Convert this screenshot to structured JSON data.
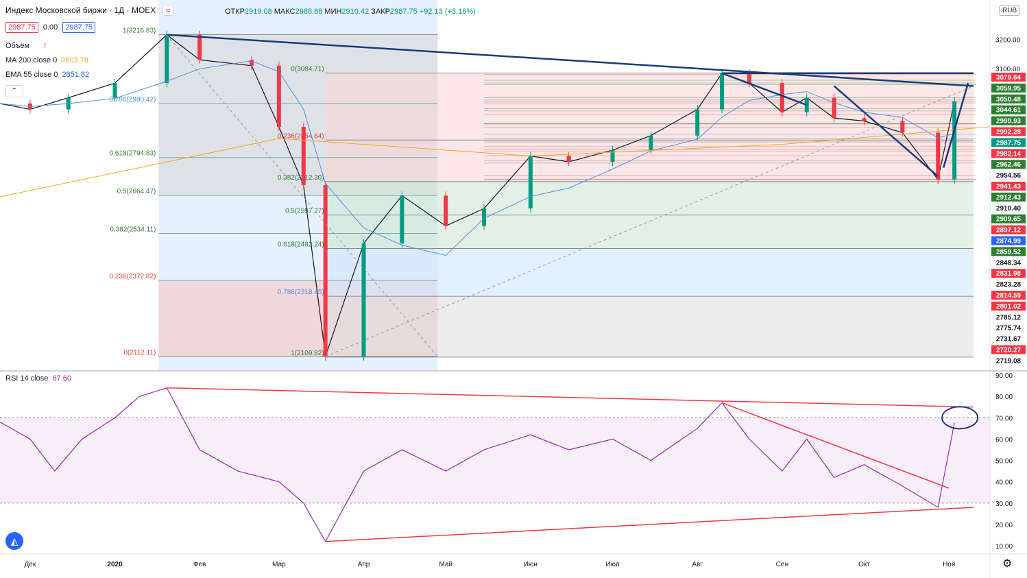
{
  "header": {
    "title": "Индекс Московской биржи · 1Д · MOEX",
    "ohlc": [
      {
        "k": "ОТКР",
        "v": "2919.08"
      },
      {
        "k": "МАКС",
        "v": "2988.88"
      },
      {
        "k": "МИН",
        "v": "2910.42"
      },
      {
        "k": "ЗАКР",
        "v": "2987.75"
      },
      {
        "k": "",
        "v": "+92.13 (+3.18%)"
      }
    ],
    "bid": "2987.75",
    "spread": "0.00",
    "ask": "2987.75",
    "currency": "RUB"
  },
  "indicators": {
    "volume_label": "Объём",
    "ma_label": "MA 200 close 0",
    "ma_value": "2803.78",
    "ema_label": "EMA 55 close 0",
    "ema_value": "2851.82",
    "rsi_label": "RSI 14 close",
    "rsi_value": "67.60"
  },
  "colors": {
    "up": "#089981",
    "down": "#f23645",
    "ma200": "#f5a623",
    "ema55": "#4a90e2",
    "rsi": "#9c27b0",
    "trend": "#1a3c78",
    "red_line": "#f23645",
    "green_line": "#5b8c1f"
  },
  "chart_data": [
    {
      "type": "candlestick",
      "symbol": "Индекс Московской биржи",
      "timeframe": "1Д",
      "x_labels": [
        "Дек",
        "2020",
        "Фев",
        "Мар",
        "Апр",
        "Май",
        "Июн",
        "Июл",
        "Авг",
        "Сен",
        "Окт",
        "Ноя"
      ],
      "y_ticks": [
        3200.0,
        3100.0
      ],
      "ylim": [
        2100,
        3300
      ],
      "close_path": [
        [
          "2019-11-20",
          2980
        ],
        [
          "2019-12-01",
          2960
        ],
        [
          "2019-12-15",
          3000
        ],
        [
          "2020-01-01",
          3050
        ],
        [
          "2020-01-20",
          3216
        ],
        [
          "2020-02-01",
          3130
        ],
        [
          "2020-02-20",
          3110
        ],
        [
          "2020-03-01",
          2900
        ],
        [
          "2020-03-10",
          2700
        ],
        [
          "2020-03-18",
          2112
        ],
        [
          "2020-04-01",
          2500
        ],
        [
          "2020-04-15",
          2664
        ],
        [
          "2020-05-01",
          2560
        ],
        [
          "2020-05-15",
          2620
        ],
        [
          "2020-06-01",
          2800
        ],
        [
          "2020-06-15",
          2780
        ],
        [
          "2020-07-01",
          2820
        ],
        [
          "2020-07-15",
          2870
        ],
        [
          "2020-08-01",
          2960
        ],
        [
          "2020-08-10",
          3084
        ],
        [
          "2020-08-20",
          3050
        ],
        [
          "2020-09-01",
          2950
        ],
        [
          "2020-09-10",
          3000
        ],
        [
          "2020-09-20",
          2930
        ],
        [
          "2020-10-01",
          2920
        ],
        [
          "2020-10-15",
          2880
        ],
        [
          "2020-10-28",
          2719
        ],
        [
          "2020-11-03",
          2987.75
        ]
      ],
      "fib_left": [
        {
          "label": "1(3216.83)",
          "value": 3216.83
        },
        {
          "label": "0.786(2980.42)",
          "value": 2980.42
        },
        {
          "label": "0.618(2794.83)",
          "value": 2794.83
        },
        {
          "label": "0.5(2664.47)",
          "value": 2664.47
        },
        {
          "label": "0.382(2534.11)",
          "value": 2534.11
        },
        {
          "label": "0.236(2372.82)",
          "value": 2372.82
        },
        {
          "label": "0(2112.11)",
          "value": 2112.11
        }
      ],
      "fib_right": [
        {
          "label": "0(3084.71)",
          "value": 3084.71
        },
        {
          "label": "0.236(2854.64)",
          "value": 2854.64
        },
        {
          "label": "0.382(2712.30)",
          "value": 2712.3
        },
        {
          "label": "0.5(2597.27)",
          "value": 2597.27
        },
        {
          "label": "0.618(2482.24)",
          "value": 2482.24
        },
        {
          "label": "0.786(2318.45)",
          "value": 2318.45
        },
        {
          "label": "1(2109.82)",
          "value": 2109.82
        }
      ],
      "price_labels": [
        {
          "value": "3079.64",
          "style": "red"
        },
        {
          "value": "3059.95",
          "style": "green"
        },
        {
          "value": "3050.48",
          "style": "green"
        },
        {
          "value": "3044.61",
          "style": "green"
        },
        {
          "value": "2999.93",
          "style": "green"
        },
        {
          "value": "2992.28",
          "style": "red"
        },
        {
          "value": "2987.75",
          "style": "teal"
        },
        {
          "value": "2982.14",
          "style": "red"
        },
        {
          "value": "2962.46",
          "style": "green"
        },
        {
          "value": "2954.56",
          "style": "white"
        },
        {
          "value": "2941.43",
          "style": "red"
        },
        {
          "value": "2912.43",
          "style": "green"
        },
        {
          "value": "2910.40",
          "style": "white"
        },
        {
          "value": "2909.65",
          "style": "green"
        },
        {
          "value": "2897.12",
          "style": "red"
        },
        {
          "value": "2874.99",
          "style": "blue"
        },
        {
          "value": "2859.52",
          "style": "green"
        },
        {
          "value": "2848.34",
          "style": "white"
        },
        {
          "value": "2831.98",
          "style": "red"
        },
        {
          "value": "2823.28",
          "style": "white"
        },
        {
          "value": "2814.59",
          "style": "red"
        },
        {
          "value": "2801.02",
          "style": "red"
        },
        {
          "value": "2785.12",
          "style": "white"
        },
        {
          "value": "2775.74",
          "style": "white"
        },
        {
          "value": "2731.67",
          "style": "white"
        },
        {
          "value": "2720.27",
          "style": "red"
        },
        {
          "value": "2719.08",
          "style": "white"
        }
      ]
    },
    {
      "type": "line",
      "title": "RSI 14 close",
      "y_ticks": [
        "90.00",
        "80.00",
        "70.00",
        "60.00",
        "50.00",
        "40.00",
        "30.00",
        "20.00",
        "10.00"
      ],
      "ylim": [
        10,
        90
      ],
      "band": [
        30,
        70
      ],
      "path": [
        [
          "2019-11-20",
          68
        ],
        [
          "2019-12-01",
          60
        ],
        [
          "2019-12-10",
          45
        ],
        [
          "2019-12-20",
          60
        ],
        [
          "2020-01-01",
          70
        ],
        [
          "2020-01-10",
          80
        ],
        [
          "2020-01-20",
          84
        ],
        [
          "2020-02-01",
          55
        ],
        [
          "2020-02-15",
          45
        ],
        [
          "2020-03-01",
          40
        ],
        [
          "2020-03-10",
          30
        ],
        [
          "2020-03-18",
          12
        ],
        [
          "2020-04-01",
          45
        ],
        [
          "2020-04-15",
          55
        ],
        [
          "2020-05-01",
          45
        ],
        [
          "2020-05-15",
          55
        ],
        [
          "2020-06-01",
          62
        ],
        [
          "2020-06-15",
          55
        ],
        [
          "2020-07-01",
          60
        ],
        [
          "2020-07-15",
          50
        ],
        [
          "2020-08-01",
          65
        ],
        [
          "2020-08-10",
          77
        ],
        [
          "2020-08-20",
          60
        ],
        [
          "2020-09-01",
          45
        ],
        [
          "2020-09-10",
          60
        ],
        [
          "2020-09-20",
          42
        ],
        [
          "2020-10-01",
          48
        ],
        [
          "2020-10-15",
          38
        ],
        [
          "2020-10-28",
          28
        ],
        [
          "2020-11-03",
          67.6
        ]
      ]
    }
  ]
}
